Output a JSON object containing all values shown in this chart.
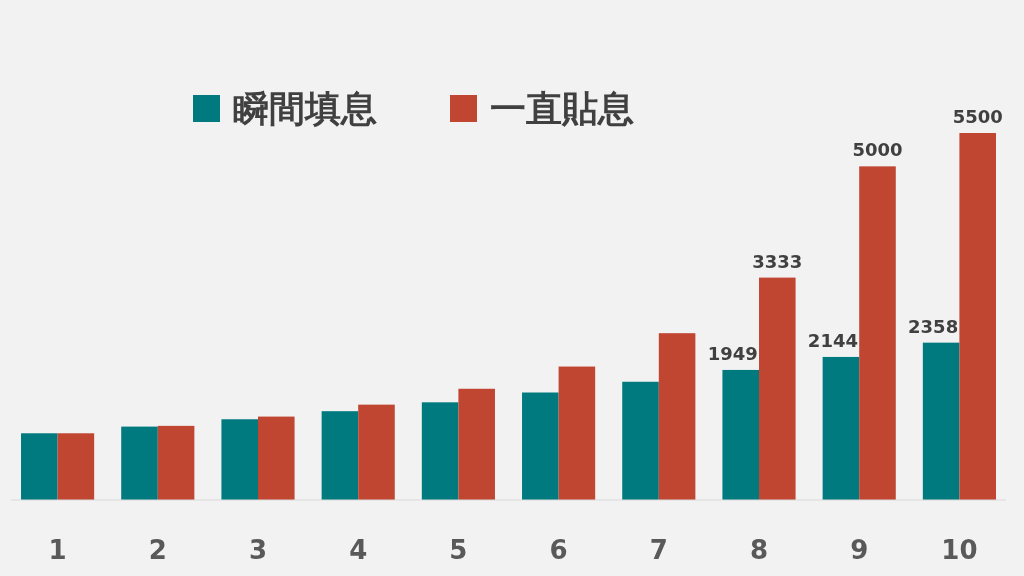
{
  "chart_data": {
    "type": "bar",
    "categories": [
      "1",
      "2",
      "3",
      "4",
      "5",
      "6",
      "7",
      "8",
      "9",
      "10"
    ],
    "series": [
      {
        "name": "瞬間填息",
        "color": "#007a7e",
        "values": [
          1000,
          1100,
          1210,
          1331,
          1464,
          1611,
          1772,
          1949,
          2144,
          2358
        ],
        "value_labels": [
          null,
          null,
          null,
          null,
          null,
          null,
          null,
          "1949",
          "2144",
          "2358"
        ]
      },
      {
        "name": "一直貼息",
        "color": "#c04632",
        "values": [
          1000,
          1111,
          1250,
          1429,
          1667,
          2000,
          2500,
          3333,
          5000,
          5500
        ],
        "value_labels": [
          null,
          null,
          null,
          null,
          null,
          null,
          null,
          "3333",
          "5000",
          "5500"
        ]
      }
    ],
    "legend": "top",
    "grid": false
  }
}
